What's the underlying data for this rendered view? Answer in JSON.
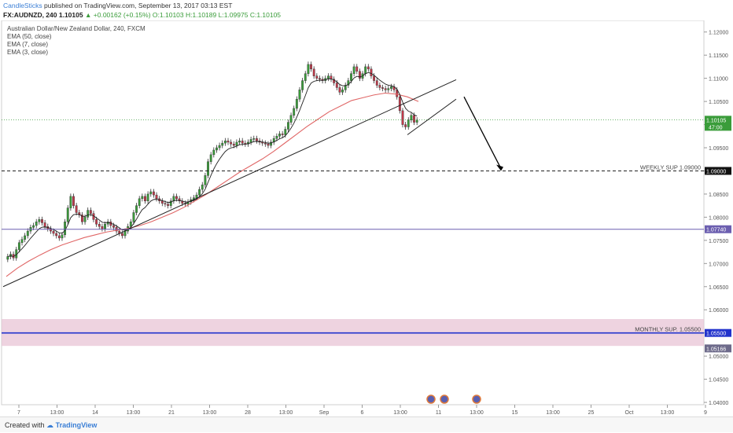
{
  "header": {
    "publisher": "CandleSticks",
    "published_text": "published on TradingView.com, September 13, 2017 03:13 EST",
    "symbol": "FX:AUDNZD, 240",
    "last": "1.10105",
    "change": "+0.00162 (+0.15%)",
    "open": "O:1.10103",
    "high": "H:1.10189",
    "low": "L:1.09975",
    "close": "C:1.10105"
  },
  "legend": {
    "title": "Australian Dollar/New Zealand Dollar, 240, FXCM",
    "ema50": "EMA (50, close)",
    "ema7": "EMA (7, close)",
    "ema3": "EMA (3, close)"
  },
  "footer": {
    "created_with": "Created with",
    "brand": "TradingView"
  },
  "colors": {
    "bull": "#3a9c3a",
    "bear": "#c0394a",
    "ema50": "#e06666",
    "ema_short": "#222222",
    "trendline": "#222222",
    "weekly_line": "#222222",
    "purple_line": "#6c5fb0",
    "monthly_line": "#2233cc",
    "zone": "#e8c4d6"
  },
  "chart_data": {
    "type": "candlestick",
    "title": "Australian Dollar/New Zealand Dollar, 240, FXCM",
    "ylim": [
      1.0395,
      1.1225
    ],
    "y_ticks": [
      "1.12000",
      "1.11500",
      "1.11000",
      "1.10500",
      "1.10000",
      "1.09500",
      "1.09000",
      "1.08500",
      "1.08000",
      "1.07500",
      "1.07000",
      "1.06500",
      "1.06000",
      "1.05500",
      "1.05000",
      "1.04500",
      "1.04000"
    ],
    "x_ticks": [
      "7",
      "13:00",
      "14",
      "13:00",
      "21",
      "13:00",
      "28",
      "13:00",
      "Sep",
      "6",
      "13:00",
      "11",
      "13:00",
      "15",
      "13:00",
      "25",
      "Oct",
      "13:00",
      "9"
    ],
    "closes": [
      1.0715,
      1.072,
      1.0712,
      1.073,
      1.0745,
      1.0752,
      1.076,
      1.077,
      1.0778,
      1.0782,
      1.079,
      1.0795,
      1.0788,
      1.078,
      1.0775,
      1.077,
      1.0765,
      1.076,
      1.0755,
      1.0762,
      1.079,
      1.082,
      1.0845,
      1.0825,
      1.081,
      1.0805,
      1.079,
      1.08,
      1.0815,
      1.0808,
      1.0795,
      1.0785,
      1.078,
      1.0775,
      1.0785,
      1.079,
      1.0782,
      1.0778,
      1.077,
      1.0765,
      1.076,
      1.077,
      1.078,
      1.079,
      1.081,
      1.0825,
      1.084,
      1.0845,
      1.0835,
      1.085,
      1.0855,
      1.0848,
      1.084,
      1.0835,
      1.083,
      1.0828,
      1.0825,
      1.0835,
      1.0845,
      1.084,
      1.0835,
      1.083,
      1.0828,
      1.0833,
      1.0838,
      1.0842,
      1.0848,
      1.086,
      1.087,
      1.089,
      1.092,
      1.0935,
      1.0945,
      1.095,
      1.0955,
      1.096,
      1.0965,
      1.0962,
      1.0958,
      1.0955,
      1.0962,
      1.0965,
      1.096,
      1.0958,
      1.0962,
      1.0968,
      1.097,
      1.0965,
      1.0962,
      1.096,
      1.0958,
      1.0955,
      1.0962,
      1.097,
      1.0975,
      1.098,
      1.0978,
      1.099,
      1.1005,
      1.102,
      1.1035,
      1.1055,
      1.1075,
      1.1095,
      1.111,
      1.113,
      1.112,
      1.1105,
      1.11,
      1.1098,
      1.1095,
      1.11,
      1.1105,
      1.1098,
      1.109,
      1.108,
      1.107,
      1.1075,
      1.1085,
      1.1095,
      1.111,
      1.1125,
      1.1115,
      1.11,
      1.111,
      1.1125,
      1.112,
      1.1105,
      1.1095,
      1.1085,
      1.108,
      1.1078,
      1.1075,
      1.1078,
      1.1082,
      1.1075,
      1.106,
      1.103,
      1.1,
      1.0995,
      1.101,
      1.102,
      1.1005,
      1.101
    ],
    "ema50": [
      1.0672,
      1.069,
      1.0705,
      1.0718,
      1.073,
      1.074,
      1.0748,
      1.0756,
      1.0762,
      1.0768,
      1.0772,
      1.0776,
      1.0782,
      1.079,
      1.08,
      1.081,
      1.0822,
      1.0836,
      1.085,
      1.0866,
      1.0882,
      1.0898,
      1.0912,
      1.0926,
      1.0942,
      1.096,
      1.0978,
      1.0996,
      1.1012,
      1.1028,
      1.104,
      1.1052,
      1.1058,
      1.1064,
      1.1068,
      1.1066,
      1.106,
      1.105
    ],
    "levels": [
      {
        "label": "WEEKLY SUP 1.09000",
        "value": 1.09,
        "tag": "1.09000"
      },
      {
        "label": "",
        "value": 1.0774,
        "tag": "1.07740"
      },
      {
        "label": "MONTHLY SUP. 1.05500",
        "value": 1.055,
        "tag": "1.05500"
      },
      {
        "label": "",
        "value": 1.05166,
        "tag": "1.05166"
      }
    ],
    "current_price": {
      "value": 1.10105,
      "tag": "1.10105",
      "countdown": "47:00"
    },
    "zone": [
      1.0522,
      1.058
    ]
  }
}
